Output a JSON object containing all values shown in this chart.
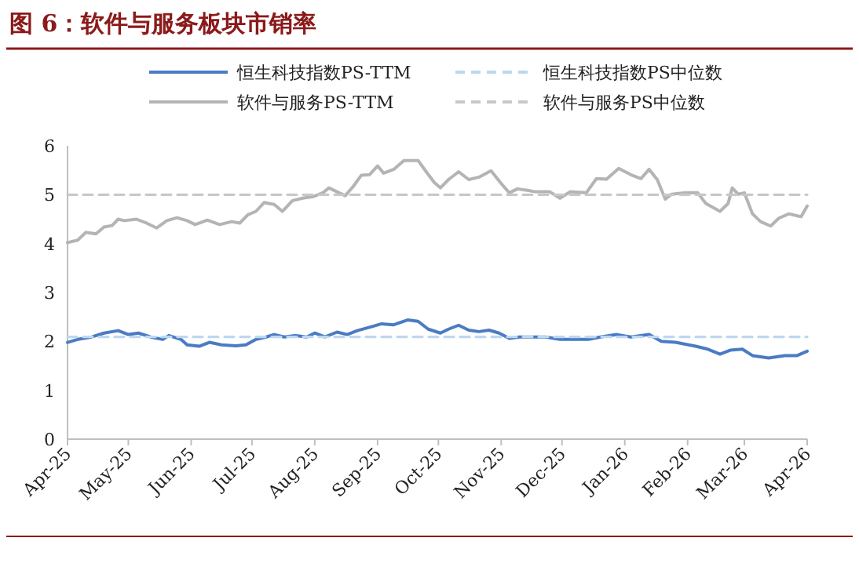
{
  "chart_data": {
    "type": "line",
    "title": "图 6：软件与服务板块市销率",
    "series": [
      {
        "name": "恒生科技指数PS-TTM",
        "color": "#4a7bc4",
        "x": [
          "2025-04-01",
          "2025-04-06",
          "2025-04-13",
          "2025-04-19",
          "2025-04-26",
          "2025-05-01",
          "2025-05-06",
          "2025-05-12",
          "2025-05-18",
          "2025-05-21",
          "2025-05-27",
          "2025-05-30",
          "2025-06-05",
          "2025-06-10",
          "2025-06-16",
          "2025-06-23",
          "2025-06-28",
          "2025-07-03",
          "2025-07-08",
          "2025-07-12",
          "2025-07-17",
          "2025-07-22",
          "2025-07-28",
          "2025-08-01",
          "2025-08-06",
          "2025-08-12",
          "2025-08-17",
          "2025-08-22",
          "2025-08-29",
          "2025-09-03",
          "2025-09-09",
          "2025-09-16",
          "2025-09-21",
          "2025-09-26",
          "2025-10-02",
          "2025-10-06",
          "2025-10-11",
          "2025-10-16",
          "2025-10-21",
          "2025-10-26",
          "2025-10-31",
          "2025-11-05",
          "2025-11-10",
          "2025-11-16",
          "2025-11-23",
          "2025-11-30",
          "2025-12-07",
          "2025-12-14",
          "2025-12-20",
          "2025-12-28",
          "2026-01-04",
          "2026-01-13",
          "2026-01-19",
          "2026-01-26",
          "2026-01-31",
          "2026-02-05",
          "2026-02-11",
          "2026-02-17",
          "2026-02-22",
          "2026-02-28",
          "2026-03-05",
          "2026-03-13",
          "2026-03-21",
          "2026-03-27",
          "2026-04-01"
        ],
        "values": [
          1.98,
          2.04,
          2.09,
          2.17,
          2.22,
          2.14,
          2.17,
          2.09,
          2.04,
          2.12,
          2.04,
          1.93,
          1.9,
          1.98,
          1.93,
          1.91,
          1.93,
          2.04,
          2.09,
          2.14,
          2.09,
          2.12,
          2.09,
          2.17,
          2.09,
          2.19,
          2.14,
          2.22,
          2.3,
          2.36,
          2.34,
          2.44,
          2.41,
          2.25,
          2.17,
          2.25,
          2.33,
          2.23,
          2.2,
          2.23,
          2.17,
          2.06,
          2.09,
          2.09,
          2.09,
          2.04,
          2.04,
          2.04,
          2.09,
          2.14,
          2.09,
          2.14,
          2.0,
          1.98,
          1.94,
          1.9,
          1.84,
          1.74,
          1.82,
          1.84,
          1.71,
          1.66,
          1.71,
          1.71,
          1.8
        ]
      },
      {
        "name": "恒生科技指数PS中位数",
        "color": "#bdd7ee",
        "line_style": "dashed",
        "x": [
          "2025-04-01",
          "2026-04-01"
        ],
        "values": [
          2.09,
          2.09
        ]
      },
      {
        "name": "软件与服务PS-TTM",
        "color": "#b4b4b4",
        "x": [
          "2025-04-01",
          "2025-04-06",
          "2025-04-10",
          "2025-04-15",
          "2025-04-19",
          "2025-04-23",
          "2025-04-26",
          "2025-04-29",
          "2025-05-05",
          "2025-05-10",
          "2025-05-15",
          "2025-05-20",
          "2025-05-25",
          "2025-05-30",
          "2025-06-03",
          "2025-06-09",
          "2025-06-15",
          "2025-06-21",
          "2025-06-25",
          "2025-06-29",
          "2025-07-03",
          "2025-07-07",
          "2025-07-12",
          "2025-07-16",
          "2025-07-21",
          "2025-07-26",
          "2025-07-31",
          "2025-08-05",
          "2025-08-08",
          "2025-08-12",
          "2025-08-16",
          "2025-08-20",
          "2025-08-24",
          "2025-08-28",
          "2025-09-01",
          "2025-09-04",
          "2025-09-09",
          "2025-09-14",
          "2025-09-21",
          "2025-09-25",
          "2025-09-29",
          "2025-10-02",
          "2025-10-06",
          "2025-10-11",
          "2025-10-16",
          "2025-10-21",
          "2025-10-27",
          "2025-11-01",
          "2025-11-05",
          "2025-11-09",
          "2025-11-14",
          "2025-11-18",
          "2025-11-25",
          "2025-11-30",
          "2025-12-05",
          "2025-12-13",
          "2025-12-18",
          "2025-12-23",
          "2025-12-29",
          "2026-01-04",
          "2026-01-09",
          "2026-01-13",
          "2026-01-17",
          "2026-01-21",
          "2026-01-24",
          "2026-01-31",
          "2026-02-06",
          "2026-02-10",
          "2026-02-17",
          "2026-02-21",
          "2026-02-23",
          "2026-02-26",
          "2026-03-01",
          "2026-03-05",
          "2026-03-09",
          "2026-03-14",
          "2026-03-18",
          "2026-03-23",
          "2026-03-29",
          "2026-04-01"
        ],
        "values": [
          4.02,
          4.07,
          4.23,
          4.2,
          4.34,
          4.37,
          4.5,
          4.47,
          4.5,
          4.42,
          4.32,
          4.47,
          4.53,
          4.47,
          4.39,
          4.48,
          4.39,
          4.45,
          4.42,
          4.59,
          4.66,
          4.84,
          4.8,
          4.66,
          4.88,
          4.93,
          4.96,
          5.04,
          5.14,
          5.06,
          4.98,
          5.17,
          5.4,
          5.41,
          5.59,
          5.44,
          5.52,
          5.7,
          5.7,
          5.47,
          5.25,
          5.14,
          5.31,
          5.47,
          5.31,
          5.36,
          5.49,
          5.23,
          5.04,
          5.12,
          5.09,
          5.06,
          5.06,
          4.93,
          5.06,
          5.04,
          5.33,
          5.32,
          5.54,
          5.41,
          5.33,
          5.52,
          5.31,
          4.91,
          5.01,
          5.04,
          5.04,
          4.82,
          4.66,
          4.82,
          5.14,
          5.01,
          5.04,
          4.61,
          4.45,
          4.36,
          4.52,
          4.61,
          4.55,
          4.77
        ]
      },
      {
        "name": "软件与服务PS中位数",
        "color": "#c8c8c8",
        "line_style": "dashed",
        "x": [
          "2025-04-01",
          "2026-04-01"
        ],
        "values": [
          5.0,
          5.0
        ]
      }
    ],
    "xlim": [
      "2025-04-01",
      "2026-04-01"
    ],
    "xticks": [
      {
        "value": "2025-04-01",
        "label": "Apr-25"
      },
      {
        "value": "2025-05-01",
        "label": "May-25"
      },
      {
        "value": "2025-06-01",
        "label": "Jun-25"
      },
      {
        "value": "2025-07-01",
        "label": "Jul-25"
      },
      {
        "value": "2025-08-01",
        "label": "Aug-25"
      },
      {
        "value": "2025-09-01",
        "label": "Sep-25"
      },
      {
        "value": "2025-10-01",
        "label": "Oct-25"
      },
      {
        "value": "2025-11-01",
        "label": "Nov-25"
      },
      {
        "value": "2025-12-01",
        "label": "Dec-25"
      },
      {
        "value": "2026-01-01",
        "label": "Jan-26"
      },
      {
        "value": "2026-02-01",
        "label": "Feb-26"
      },
      {
        "value": "2026-03-01",
        "label": "Mar-26"
      },
      {
        "value": "2026-04-01",
        "label": "Apr-26"
      }
    ],
    "ylim": [
      0,
      6
    ],
    "yticks": [
      0,
      1,
      2,
      3,
      4,
      5,
      6
    ],
    "grid": false,
    "legend": "top",
    "line_style": "solid",
    "marker": "none"
  }
}
